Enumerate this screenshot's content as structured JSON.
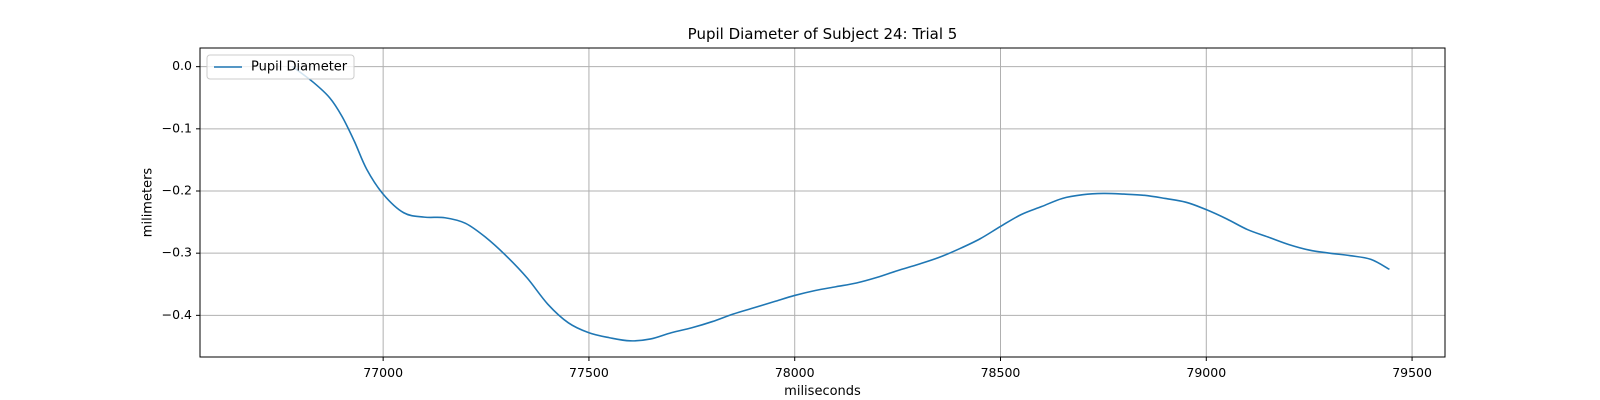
{
  "chart_data": {
    "type": "line",
    "title": "Pupil Diameter of Subject 24: Trial 5",
    "xlabel": "miliseconds",
    "ylabel": "milimeters",
    "xlim": [
      76555,
      79580
    ],
    "ylim": [
      -0.467,
      0.03
    ],
    "xticks": [
      77000,
      77500,
      78000,
      78500,
      79000,
      79500
    ],
    "yticks": [
      0.0,
      -0.1,
      -0.2,
      -0.3,
      -0.4
    ],
    "ytick_labels": [
      "0.0",
      "−0.1",
      "−0.2",
      "−0.3",
      "−0.4"
    ],
    "grid": true,
    "legend_position": "upper left",
    "series": [
      {
        "name": "Pupil Diameter",
        "color": "#1f77b4",
        "x": [
          76780,
          76830,
          76870,
          76900,
          76930,
          76960,
          77000,
          77050,
          77100,
          77150,
          77200,
          77250,
          77300,
          77350,
          77400,
          77450,
          77500,
          77550,
          77600,
          77650,
          77700,
          77750,
          77800,
          77850,
          77900,
          77950,
          78000,
          78050,
          78100,
          78150,
          78200,
          78250,
          78300,
          78350,
          78400,
          78450,
          78500,
          78550,
          78600,
          78650,
          78700,
          78750,
          78800,
          78850,
          78900,
          78950,
          79000,
          79050,
          79100,
          79150,
          79200,
          79250,
          79300,
          79350,
          79400,
          79445
        ],
        "y": [
          0.0,
          -0.025,
          -0.05,
          -0.08,
          -0.12,
          -0.165,
          -0.205,
          -0.235,
          -0.242,
          -0.243,
          -0.252,
          -0.275,
          -0.305,
          -0.34,
          -0.382,
          -0.412,
          -0.428,
          -0.436,
          -0.441,
          -0.438,
          -0.428,
          -0.42,
          -0.41,
          -0.398,
          -0.388,
          -0.378,
          -0.368,
          -0.36,
          -0.354,
          -0.348,
          -0.339,
          -0.328,
          -0.318,
          -0.307,
          -0.293,
          -0.277,
          -0.257,
          -0.238,
          -0.225,
          -0.212,
          -0.206,
          -0.204,
          -0.205,
          -0.207,
          -0.212,
          -0.218,
          -0.23,
          -0.245,
          -0.262,
          -0.274,
          -0.286,
          -0.295,
          -0.3,
          -0.304,
          -0.31,
          -0.326
        ]
      }
    ]
  }
}
